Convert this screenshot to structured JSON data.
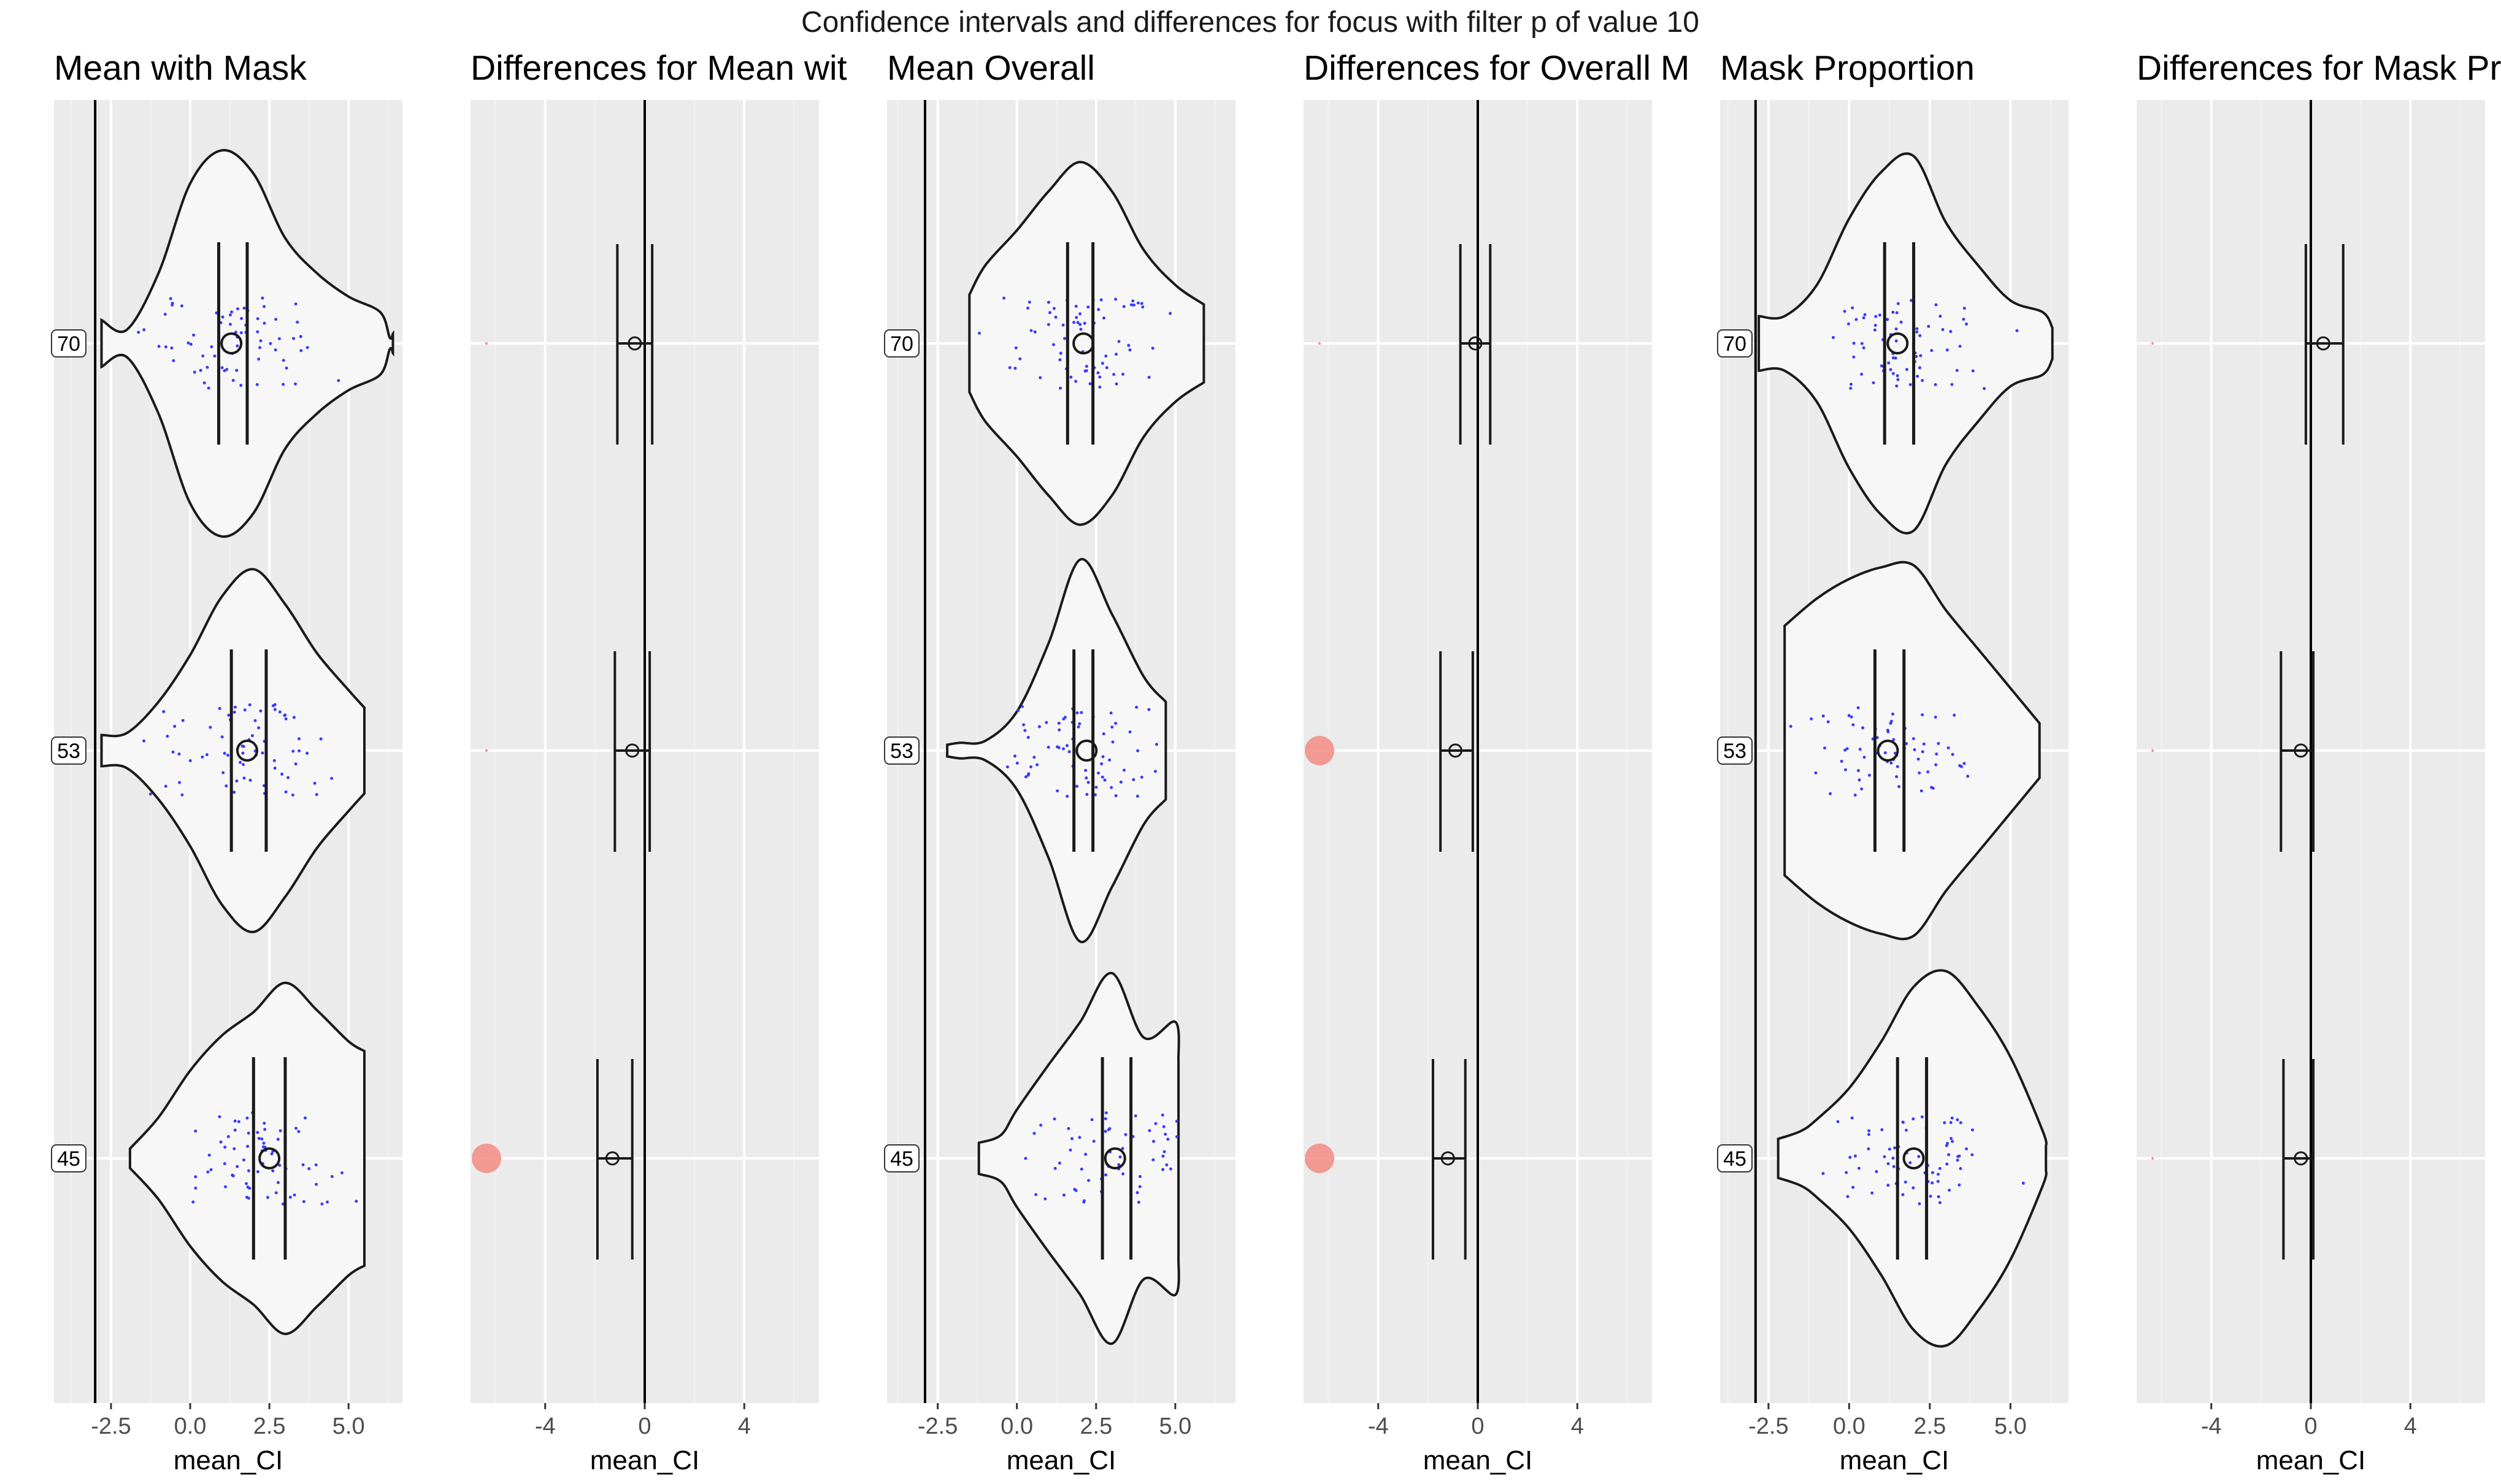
{
  "figure": {
    "title": "Confidence intervals and differences for focus with filter p of value 10"
  },
  "chart_data": [
    {
      "type": "violin",
      "title": "Mean with Mask",
      "xlabel": "mean_CI",
      "xticks": [
        "-2.5",
        "0.0",
        "2.5",
        "5.0"
      ],
      "xtick_values": [
        -2.5,
        0.0,
        2.5,
        5.0
      ],
      "xlim": [
        -4.3,
        6.7
      ],
      "categories": [
        "70",
        "53",
        "45"
      ],
      "reference_line": -3.0,
      "violins": [
        {
          "category": "70",
          "y": [
            -2.8,
            -2.0,
            -1.0,
            0.0,
            1.0,
            2.0,
            3.0,
            4.0,
            5.0,
            6.0,
            6.3,
            6.4
          ],
          "half_width": [
            0.12,
            0.07,
            0.36,
            0.82,
            0.99,
            0.87,
            0.54,
            0.36,
            0.24,
            0.16,
            0.03,
            0.05
          ],
          "mean": 1.3,
          "ci": [
            0.9,
            1.8
          ]
        },
        {
          "category": "53",
          "y": [
            -2.8,
            -2.0,
            -1.0,
            0.0,
            1.0,
            2.0,
            3.0,
            4.0,
            5.0,
            5.5
          ],
          "half_width": [
            0.08,
            0.09,
            0.25,
            0.49,
            0.79,
            0.93,
            0.75,
            0.5,
            0.31,
            0.22
          ],
          "mean": 1.8,
          "ci": [
            1.3,
            2.4
          ]
        },
        {
          "category": "45",
          "y": [
            -1.9,
            -1.0,
            0.0,
            1.0,
            2.0,
            3.0,
            4.0,
            5.0,
            5.5
          ],
          "half_width": [
            0.05,
            0.21,
            0.45,
            0.63,
            0.75,
            0.9,
            0.76,
            0.6,
            0.55
          ],
          "mean": 2.5,
          "ci": [
            2.0,
            3.0
          ]
        }
      ]
    },
    {
      "type": "errorbar",
      "title": "Differences for Mean wit",
      "xlabel": "mean_CI",
      "xticks": [
        "-4",
        "0",
        "4"
      ],
      "xtick_values": [
        -4,
        0,
        4
      ],
      "xlim": [
        -7.0,
        7.0
      ],
      "categories": [
        "70",
        "53",
        "45"
      ],
      "reference_line": 0,
      "intervals": [
        {
          "category": "70",
          "mean": -0.4,
          "ci": [
            -1.1,
            0.3
          ],
          "significant": false
        },
        {
          "category": "53",
          "mean": -0.5,
          "ci": [
            -1.2,
            0.2
          ],
          "significant": false
        },
        {
          "category": "45",
          "mean": -1.3,
          "ci": [
            -1.9,
            -0.5
          ],
          "significant": true
        }
      ]
    },
    {
      "type": "violin",
      "title": "Mean Overall",
      "xlabel": "mean_CI",
      "xticks": [
        "-2.5",
        "0.0",
        "2.5",
        "5.0"
      ],
      "xtick_values": [
        -2.5,
        0.0,
        2.5,
        5.0
      ],
      "xlim": [
        -4.1,
        6.9
      ],
      "categories": [
        "70",
        "53",
        "45"
      ],
      "reference_line": -2.9,
      "violins": [
        {
          "category": "70",
          "y": [
            -1.5,
            -1.0,
            0.0,
            1.0,
            2.0,
            3.0,
            4.0,
            5.0,
            5.9
          ],
          "half_width": [
            0.25,
            0.4,
            0.58,
            0.78,
            0.93,
            0.78,
            0.48,
            0.3,
            0.2
          ],
          "mean": 2.1,
          "ci": [
            1.6,
            2.4
          ]
        },
        {
          "category": "53",
          "y": [
            -2.2,
            -1.8,
            -1.0,
            0.0,
            1.0,
            2.0,
            3.0,
            4.0,
            4.7
          ],
          "half_width": [
            0.03,
            0.04,
            0.05,
            0.2,
            0.55,
            0.98,
            0.7,
            0.38,
            0.25
          ],
          "mean": 2.2,
          "ci": [
            1.8,
            2.4
          ]
        },
        {
          "category": "45",
          "y": [
            -1.2,
            -0.5,
            0.0,
            1.0,
            2.0,
            3.0,
            4.0,
            5.0,
            5.1
          ],
          "half_width": [
            0.08,
            0.12,
            0.25,
            0.48,
            0.7,
            0.95,
            0.62,
            0.7,
            0.5
          ],
          "mean": 3.1,
          "ci": [
            2.7,
            3.6
          ]
        }
      ]
    },
    {
      "type": "errorbar",
      "title": "Differences for Overall M",
      "xlabel": "mean_CI",
      "xticks": [
        "-4",
        "0",
        "4"
      ],
      "xtick_values": [
        -4,
        0,
        4
      ],
      "xlim": [
        -7.0,
        7.0
      ],
      "categories": [
        "70",
        "53",
        "45"
      ],
      "reference_line": 0,
      "intervals": [
        {
          "category": "70",
          "mean": -0.1,
          "ci": [
            -0.7,
            0.5
          ],
          "significant": false
        },
        {
          "category": "53",
          "mean": -0.9,
          "ci": [
            -1.5,
            -0.2
          ],
          "significant": true
        },
        {
          "category": "45",
          "mean": -1.2,
          "ci": [
            -1.8,
            -0.5
          ],
          "significant": true
        }
      ]
    },
    {
      "type": "violin",
      "title": "Mask Proportion",
      "xlabel": "mean_CI",
      "xticks": [
        "-2.5",
        "0.0",
        "2.5",
        "5.0"
      ],
      "xtick_values": [
        -2.5,
        0.0,
        2.5,
        5.0
      ],
      "xlim": [
        -4.0,
        6.8
      ],
      "categories": [
        "70",
        "53",
        "45"
      ],
      "reference_line": -2.9,
      "violins": [
        {
          "category": "70",
          "y": [
            -2.8,
            -2.0,
            -1.0,
            0.0,
            1.0,
            2.0,
            3.0,
            4.0,
            5.0,
            6.0,
            6.3
          ],
          "half_width": [
            0.14,
            0.14,
            0.3,
            0.64,
            0.88,
            0.96,
            0.62,
            0.4,
            0.22,
            0.16,
            0.08
          ],
          "mean": 1.5,
          "ci": [
            1.1,
            2.0
          ]
        },
        {
          "category": "53",
          "y": [
            -2.0,
            -1.0,
            0.0,
            1.0,
            2.0,
            3.0,
            4.0,
            5.0,
            5.9
          ],
          "half_width": [
            0.64,
            0.78,
            0.88,
            0.94,
            0.95,
            0.72,
            0.52,
            0.32,
            0.14
          ],
          "mean": 1.2,
          "ci": [
            0.8,
            1.7
          ]
        },
        {
          "category": "45",
          "y": [
            -2.2,
            -1.5,
            -1.0,
            0.0,
            1.0,
            2.0,
            3.0,
            4.0,
            5.0,
            6.0,
            6.1
          ],
          "half_width": [
            0.1,
            0.14,
            0.2,
            0.36,
            0.6,
            0.88,
            0.96,
            0.78,
            0.52,
            0.14,
            0.06
          ],
          "mean": 2.0,
          "ci": [
            1.5,
            2.4
          ]
        }
      ]
    },
    {
      "type": "errorbar",
      "title": "Differences for Mask Pro",
      "xlabel": "mean_CI",
      "xticks": [
        "-4",
        "0",
        "4"
      ],
      "xtick_values": [
        -4,
        0,
        4
      ],
      "xlim": [
        -7.0,
        7.0
      ],
      "categories": [
        "70",
        "53",
        "45"
      ],
      "reference_line": 0,
      "intervals": [
        {
          "category": "70",
          "mean": 0.5,
          "ci": [
            -0.2,
            1.3
          ],
          "significant": false
        },
        {
          "category": "53",
          "mean": -0.4,
          "ci": [
            -1.2,
            0.1
          ],
          "significant": false
        },
        {
          "category": "45",
          "mean": -0.4,
          "ci": [
            -1.1,
            0.1
          ],
          "significant": false
        }
      ]
    }
  ],
  "colors": {
    "panel_background": "#ebebeb",
    "grid_major": "#ffffff",
    "grid_minor": "#f2f2f2",
    "violin_fill": "#f7f7f7",
    "line": "#1a1a1a",
    "jitter_points": "#3b3bff",
    "significant_marker": "#f28b82"
  }
}
